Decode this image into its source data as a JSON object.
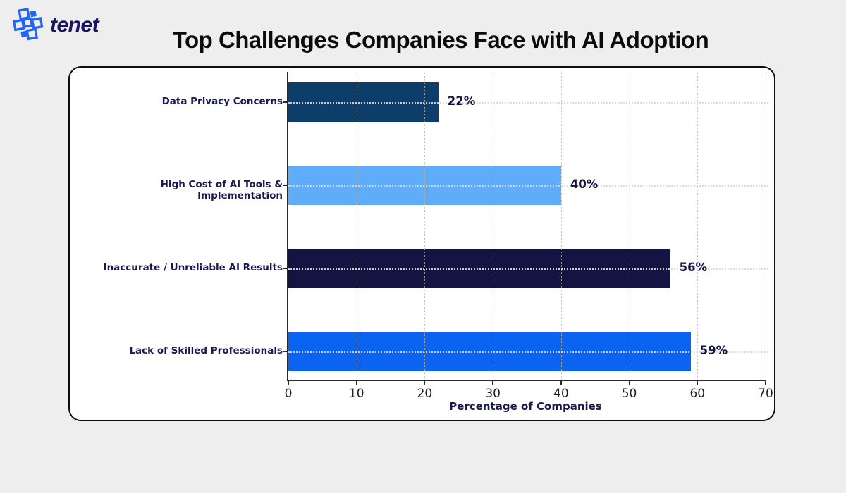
{
  "page": {
    "background_color": "#eeeeee",
    "card_background": "#ffffff",
    "card_border_color": "#0d0d0d"
  },
  "logo": {
    "text": "tenet",
    "text_color": "#1b1464",
    "icon": "tenet-pixel-cross-icon",
    "icon_color": "#2166f3"
  },
  "title": {
    "text": "Top Challenges Companies Face with AI Adoption",
    "color": "#0b0b0b"
  },
  "chart_data": {
    "type": "bar",
    "orientation": "horizontal",
    "title": "Top Challenges Companies Face with AI Adoption",
    "categories": [
      "Data Privacy Concerns",
      "High Cost of AI Tools & Implementation",
      "Inaccurate / Unreliable AI Results",
      "Lack of Skilled Professionals"
    ],
    "values": [
      22,
      40,
      56,
      59
    ],
    "value_labels": [
      "22%",
      "40%",
      "56%",
      "59%"
    ],
    "bar_colors": [
      "#0d3d6b",
      "#5fadf8",
      "#141442",
      "#0b63f1"
    ],
    "xlabel": "Percentage of Companies",
    "ylabel": "",
    "xlim": [
      0,
      70
    ],
    "xticks": [
      0,
      10,
      20,
      30,
      40,
      50,
      60,
      70
    ],
    "xtick_labels": [
      "0",
      "10",
      "20",
      "30",
      "40",
      "50",
      "60",
      "70"
    ],
    "grid": true,
    "legend": false,
    "category_label_color": "#191950",
    "value_label_color": "#14143f",
    "tick_label_color": "#1e1e1e",
    "axis_label_color": "#191950"
  }
}
